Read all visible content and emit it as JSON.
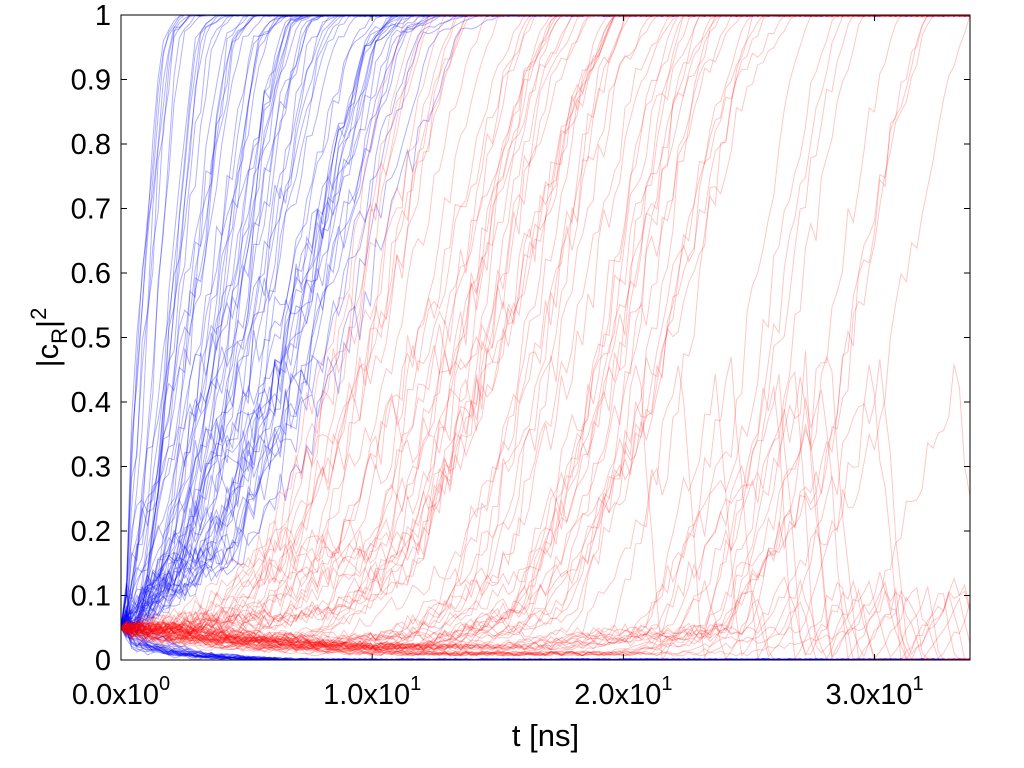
{
  "chart_data": {
    "type": "line",
    "title": "",
    "xlabel": "t [ns]",
    "ylabel": {
      "base": "|c",
      "sub": "R",
      "tail": "|",
      "sup": "2"
    },
    "xlim": [
      0,
      33.8
    ],
    "ylim": [
      0,
      1
    ],
    "x_ticks": [
      {
        "value": 0,
        "mantissa": "0.0x10",
        "exponent": "0"
      },
      {
        "value": 10,
        "mantissa": "1.0x10",
        "exponent": "1"
      },
      {
        "value": 20,
        "mantissa": "2.0x10",
        "exponent": "1"
      },
      {
        "value": 30,
        "mantissa": "3.0x10",
        "exponent": "1"
      }
    ],
    "y_ticks": [
      {
        "value": 0,
        "label": "0"
      },
      {
        "value": 0.1,
        "label": "0.1"
      },
      {
        "value": 0.2,
        "label": "0.2"
      },
      {
        "value": 0.3,
        "label": "0.3"
      },
      {
        "value": 0.4,
        "label": "0.4"
      },
      {
        "value": 0.5,
        "label": "0.5"
      },
      {
        "value": 0.6,
        "label": "0.6"
      },
      {
        "value": 0.7,
        "label": "0.7"
      },
      {
        "value": 0.8,
        "label": "0.8"
      },
      {
        "value": 0.9,
        "label": "0.9"
      },
      {
        "value": 1,
        "label": "1"
      }
    ],
    "grid": false,
    "legend": "none",
    "initial_value": 0.05,
    "series": [
      {
        "color": "#0000ff",
        "opacity": 0.3,
        "samples": [
          {
            "end": 0.88,
            "curve": [
              [
                0.0,
                0.05
              ],
              [
                0.3,
                0.12
              ],
              [
                0.8,
                0.3
              ],
              [
                1.3,
                0.55
              ],
              [
                1.8,
                0.8
              ],
              [
                2.3,
                0.97
              ],
              [
                3.0,
                1.0
              ]
            ]
          },
          {
            "end": 0.02,
            "curve": [
              [
                0.0,
                0.05
              ],
              [
                0.5,
                0.03
              ],
              [
                1.5,
                0.015
              ],
              [
                3.0,
                0.007
              ],
              [
                5.0,
                0.002
              ],
              [
                7.0,
                0.0
              ]
            ]
          },
          {
            "end": 0.78,
            "curve": [
              [
                0.0,
                0.05
              ],
              [
                0.8,
                0.12
              ],
              [
                1.8,
                0.28
              ],
              [
                2.8,
                0.5
              ],
              [
                3.8,
                0.75
              ],
              [
                4.6,
                0.96
              ],
              [
                5.5,
                1.0
              ]
            ]
          },
          {
            "end": 0.0,
            "curve": [
              [
                0.0,
                0.05
              ],
              [
                1.0,
                0.03
              ],
              [
                2.5,
                0.01
              ],
              [
                4.5,
                0.004
              ],
              [
                6.5,
                0.0
              ]
            ]
          },
          {
            "end": 0.65,
            "curve": [
              [
                0.0,
                0.05
              ],
              [
                1.5,
                0.14
              ],
              [
                3.0,
                0.33
              ],
              [
                4.5,
                0.58
              ],
              [
                5.8,
                0.85
              ],
              [
                6.8,
                0.99
              ],
              [
                7.5,
                1.0
              ]
            ]
          },
          {
            "end": 0.45,
            "curve": [
              [
                0.0,
                0.05
              ],
              [
                2.5,
                0.16
              ],
              [
                5.0,
                0.4
              ],
              [
                7.0,
                0.7
              ],
              [
                8.5,
                0.95
              ],
              [
                9.5,
                1.0
              ]
            ]
          },
          {
            "end": 0.25,
            "curve": [
              [
                0.0,
                0.05
              ],
              [
                4.0,
                0.18
              ],
              [
                7.0,
                0.45
              ],
              [
                9.5,
                0.78
              ],
              [
                11.0,
                0.97
              ],
              [
                12.5,
                1.0
              ]
            ]
          }
        ]
      },
      {
        "color": "#ff0000",
        "opacity": 0.22,
        "samples": [
          {
            "end": 0.1,
            "curve": [
              [
                0.0,
                0.05
              ],
              [
                3.0,
                0.05
              ],
              [
                6.0,
                0.08
              ],
              [
                9.0,
                0.2
              ],
              [
                12.0,
                0.5
              ],
              [
                14.5,
                0.85
              ],
              [
                16.0,
                1.0
              ]
            ]
          },
          {
            "end": 0.05,
            "curve": [
              [
                0.0,
                0.05
              ],
              [
                3.0,
                0.04
              ],
              [
                6.0,
                0.03
              ],
              [
                10.0,
                0.04
              ],
              [
                14.0,
                0.15
              ],
              [
                17.0,
                0.5
              ],
              [
                19.5,
                0.9
              ],
              [
                21.0,
                1.0
              ]
            ]
          },
          {
            "end": 0.3,
            "curve": [
              [
                0.0,
                0.05
              ],
              [
                4.0,
                0.07
              ],
              [
                8.0,
                0.2
              ],
              [
                11.0,
                0.55
              ],
              [
                13.0,
                0.9
              ],
              [
                14.0,
                1.0
              ]
            ]
          },
          {
            "end": 0.0,
            "curve": [
              [
                0.0,
                0.05
              ],
              [
                4.0,
                0.03
              ],
              [
                8.0,
                0.02
              ],
              [
                14.0,
                0.02
              ],
              [
                20.0,
                0.05
              ],
              [
                23.5,
                0.3
              ],
              [
                26.0,
                0.85
              ],
              [
                27.0,
                1.0
              ]
            ]
          },
          {
            "end": 0.0,
            "curve": [
              [
                0.0,
                0.05
              ],
              [
                6.0,
                0.02
              ],
              [
                12.0,
                0.01
              ],
              [
                20.0,
                0.01
              ],
              [
                24.0,
                0.05
              ],
              [
                27.0,
                0.45
              ],
              [
                28.0,
                0.0
              ],
              [
                30.0,
                0.12
              ],
              [
                31.0,
                0.0
              ],
              [
                32.5,
                0.1
              ],
              [
                33.0,
                0.0
              ]
            ]
          },
          {
            "end": 0.0,
            "curve": [
              [
                0.0,
                0.05
              ],
              [
                5.0,
                0.03
              ],
              [
                12.0,
                0.02
              ],
              [
                16.0,
                0.08
              ],
              [
                19.0,
                0.4
              ],
              [
                21.5,
                0.85
              ],
              [
                23.0,
                1.0
              ]
            ]
          }
        ]
      }
    ]
  }
}
